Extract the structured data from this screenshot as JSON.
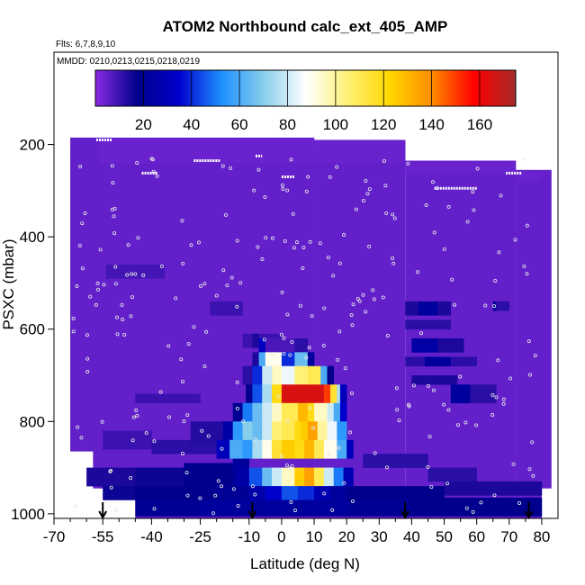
{
  "chart_data": {
    "type": "heatmap",
    "title": "ATOM2 Northbound calc_ext_405_AMP",
    "subtitle_flights": "Flts: 6,7,8,9,10",
    "subtitle_dates": "MMDD: 0210,0213,0215,0218,0219",
    "xlabel": "Latitude (deg N)",
    "ylabel": "PSXC (mbar)",
    "xlim": [
      -70,
      85
    ],
    "ylim": [
      1010,
      0
    ],
    "x_ticks": [
      -70,
      -55,
      -40,
      -25,
      -10,
      0,
      10,
      20,
      30,
      40,
      50,
      60,
      70,
      80
    ],
    "x_minor_ticks": [
      -65,
      -60,
      -50,
      -45,
      -35,
      -30,
      -20,
      -15,
      -5,
      5,
      15,
      25,
      35,
      45,
      55,
      65,
      75
    ],
    "y_ticks": [
      200,
      400,
      600,
      800,
      1000
    ],
    "colorbar": {
      "ticks": [
        20,
        40,
        60,
        80,
        100,
        120,
        140,
        160
      ],
      "range": [
        0,
        175
      ],
      "colors": [
        "#8a2be2",
        "#00008b",
        "#0000cd",
        "#1e90ff",
        "#87ceeb",
        "#ffffff",
        "#fff176",
        "#ffd700",
        "#ff8c00",
        "#ff0000",
        "#a52a2a"
      ]
    },
    "background_value": 5,
    "profile_arrows_lat": [
      -55,
      -9,
      38,
      76
    ],
    "cells": [
      {
        "lat": [
          -65,
          -56
        ],
        "p": [
          185,
          230
        ],
        "v": 5
      },
      {
        "lat": [
          -56,
          10
        ],
        "p": [
          185,
          240
        ],
        "v": 4
      },
      {
        "lat": [
          10,
          38
        ],
        "p": [
          190,
          240
        ],
        "v": 4
      },
      {
        "lat": [
          38,
          72
        ],
        "p": [
          235,
          260
        ],
        "v": 4
      },
      {
        "lat": [
          72,
          80
        ],
        "p": [
          260,
          280
        ],
        "v": 4
      },
      {
        "lat": [
          -54,
          -36
        ],
        "p": [
          460,
          490
        ],
        "v": 9
      },
      {
        "lat": [
          -22,
          -12
        ],
        "p": [
          540,
          570
        ],
        "v": 10
      },
      {
        "lat": [
          -12,
          0
        ],
        "p": [
          610,
          640
        ],
        "v": 10
      },
      {
        "lat": [
          -9,
          -7
        ],
        "p": [
          610,
          640
        ],
        "v": 14
      },
      {
        "lat": [
          38,
          42
        ],
        "p": [
          540,
          570
        ],
        "v": 14
      },
      {
        "lat": [
          42,
          48
        ],
        "p": [
          540,
          570
        ],
        "v": 22
      },
      {
        "lat": [
          48,
          52
        ],
        "p": [
          540,
          570
        ],
        "v": 14
      },
      {
        "lat": [
          65,
          67
        ],
        "p": [
          540,
          560
        ],
        "v": 22
      },
      {
        "lat": [
          66,
          70
        ],
        "p": [
          540,
          560
        ],
        "v": 12
      },
      {
        "lat": [
          38,
          52
        ],
        "p": [
          580,
          600
        ],
        "v": 12
      },
      {
        "lat": [
          40,
          48
        ],
        "p": [
          620,
          650
        ],
        "v": 24
      },
      {
        "lat": [
          48,
          56
        ],
        "p": [
          620,
          650
        ],
        "v": 14
      },
      {
        "lat": [
          38,
          44
        ],
        "p": [
          660,
          680
        ],
        "v": 12
      },
      {
        "lat": [
          44,
          52
        ],
        "p": [
          660,
          680
        ],
        "v": 22
      },
      {
        "lat": [
          52,
          60
        ],
        "p": [
          660,
          680
        ],
        "v": 12
      },
      {
        "lat": [
          40,
          54
        ],
        "p": [
          700,
          720
        ],
        "v": 14
      },
      {
        "lat": [
          52,
          58
        ],
        "p": [
          720,
          760
        ],
        "v": 22
      },
      {
        "lat": [
          58,
          66
        ],
        "p": [
          720,
          760
        ],
        "v": 12
      },
      {
        "lat": [
          -45,
          -25
        ],
        "p": [
          740,
          760
        ],
        "v": 10
      },
      {
        "lat": [
          -55,
          -40
        ],
        "p": [
          820,
          860
        ],
        "v": 10
      },
      {
        "lat": [
          -40,
          -20
        ],
        "p": [
          840,
          870
        ],
        "v": 12
      },
      {
        "lat": [
          -28,
          -15
        ],
        "p": [
          800,
          850
        ],
        "v": 13
      },
      {
        "lat": [
          -15,
          -10
        ],
        "p": [
          820,
          870
        ],
        "v": 18
      },
      {
        "lat": [
          -60,
          -45
        ],
        "p": [
          900,
          940
        ],
        "v": 14
      },
      {
        "lat": [
          -45,
          -30
        ],
        "p": [
          900,
          940
        ],
        "v": 16
      },
      {
        "lat": [
          -30,
          -15
        ],
        "p": [
          890,
          940
        ],
        "v": 18
      },
      {
        "lat": [
          -15,
          -10
        ],
        "p": [
          870,
          940
        ],
        "v": 22
      },
      {
        "lat": [
          25,
          45
        ],
        "p": [
          870,
          900
        ],
        "v": 12
      },
      {
        "lat": [
          45,
          60
        ],
        "p": [
          900,
          930
        ],
        "v": 12
      },
      {
        "lat": [
          -55,
          -45
        ],
        "p": [
          940,
          970
        ],
        "v": 16
      },
      {
        "lat": [
          -45,
          -20
        ],
        "p": [
          940,
          970
        ],
        "v": 18
      },
      {
        "lat": [
          -20,
          -10
        ],
        "p": [
          940,
          970
        ],
        "v": 20
      },
      {
        "lat": [
          20,
          50
        ],
        "p": [
          940,
          970
        ],
        "v": 18
      },
      {
        "lat": [
          50,
          80
        ],
        "p": [
          930,
          960
        ],
        "v": 14
      },
      {
        "lat": [
          -45,
          -25
        ],
        "p": [
          970,
          1005
        ],
        "v": 20
      },
      {
        "lat": [
          -25,
          -10
        ],
        "p": [
          970,
          1005
        ],
        "v": 22
      },
      {
        "lat": [
          20,
          40
        ],
        "p": [
          970,
          1005
        ],
        "v": 20
      },
      {
        "lat": [
          40,
          80
        ],
        "p": [
          965,
          1005
        ],
        "v": 18
      },
      {
        "lat": [
          -7,
          -5
        ],
        "p": [
          620,
          650
        ],
        "v": 32
      },
      {
        "lat": [
          -5,
          4
        ],
        "p": [
          620,
          650
        ],
        "v": 8
      },
      {
        "lat": [
          4,
          8
        ],
        "p": [
          620,
          650
        ],
        "v": 12
      },
      {
        "lat": [
          -9,
          -7
        ],
        "p": [
          650,
          680
        ],
        "v": 14
      },
      {
        "lat": [
          -7,
          -5
        ],
        "p": [
          650,
          680
        ],
        "v": 60
      },
      {
        "lat": [
          -5,
          0
        ],
        "p": [
          650,
          680
        ],
        "v": 90
      },
      {
        "lat": [
          0,
          4
        ],
        "p": [
          650,
          680
        ],
        "v": 40
      },
      {
        "lat": [
          4,
          8
        ],
        "p": [
          650,
          680
        ],
        "v": 65
      },
      {
        "lat": [
          8,
          10
        ],
        "p": [
          650,
          680
        ],
        "v": 22
      },
      {
        "lat": [
          -12,
          -9
        ],
        "p": [
          680,
          720
        ],
        "v": 12
      },
      {
        "lat": [
          -9,
          -6
        ],
        "p": [
          680,
          720
        ],
        "v": 40
      },
      {
        "lat": [
          -6,
          -3
        ],
        "p": [
          680,
          720
        ],
        "v": 80
      },
      {
        "lat": [
          -3,
          0
        ],
        "p": [
          680,
          720
        ],
        "v": 95
      },
      {
        "lat": [
          0,
          4
        ],
        "p": [
          680,
          720
        ],
        "v": 85
      },
      {
        "lat": [
          4,
          8
        ],
        "p": [
          680,
          720
        ],
        "v": 105
      },
      {
        "lat": [
          8,
          12
        ],
        "p": [
          680,
          720
        ],
        "v": 110
      },
      {
        "lat": [
          12,
          14
        ],
        "p": [
          680,
          720
        ],
        "v": 60
      },
      {
        "lat": [
          14,
          16
        ],
        "p": [
          680,
          720
        ],
        "v": 18
      },
      {
        "lat": [
          -11,
          -9
        ],
        "p": [
          720,
          760
        ],
        "v": 18
      },
      {
        "lat": [
          -9,
          -6
        ],
        "p": [
          720,
          760
        ],
        "v": 45
      },
      {
        "lat": [
          -6,
          -3
        ],
        "p": [
          720,
          760
        ],
        "v": 75
      },
      {
        "lat": [
          -3,
          0
        ],
        "p": [
          720,
          760
        ],
        "v": 120
      },
      {
        "lat": [
          0,
          13
        ],
        "p": [
          720,
          760
        ],
        "v": 165
      },
      {
        "lat": [
          13,
          15
        ],
        "p": [
          720,
          760
        ],
        "v": 150
      },
      {
        "lat": [
          15,
          17
        ],
        "p": [
          720,
          760
        ],
        "v": 115
      },
      {
        "lat": [
          17,
          18
        ],
        "p": [
          720,
          760
        ],
        "v": 75
      },
      {
        "lat": [
          18,
          20
        ],
        "p": [
          720,
          760
        ],
        "v": 30
      },
      {
        "lat": [
          -15,
          -12
        ],
        "p": [
          760,
          800
        ],
        "v": 20
      },
      {
        "lat": [
          -12,
          -9
        ],
        "p": [
          760,
          800
        ],
        "v": 50
      },
      {
        "lat": [
          -9,
          -6
        ],
        "p": [
          760,
          800
        ],
        "v": 65
      },
      {
        "lat": [
          -6,
          -3
        ],
        "p": [
          760,
          800
        ],
        "v": 80
      },
      {
        "lat": [
          -3,
          0
        ],
        "p": [
          760,
          800
        ],
        "v": 95
      },
      {
        "lat": [
          0,
          5
        ],
        "p": [
          760,
          800
        ],
        "v": 110
      },
      {
        "lat": [
          5,
          8
        ],
        "p": [
          760,
          800
        ],
        "v": 130
      },
      {
        "lat": [
          8,
          10
        ],
        "p": [
          760,
          800
        ],
        "v": 120
      },
      {
        "lat": [
          10,
          14
        ],
        "p": [
          760,
          800
        ],
        "v": 95
      },
      {
        "lat": [
          14,
          16
        ],
        "p": [
          760,
          800
        ],
        "v": 80
      },
      {
        "lat": [
          16,
          18
        ],
        "p": [
          760,
          800
        ],
        "v": 60
      },
      {
        "lat": [
          18,
          20
        ],
        "p": [
          760,
          800
        ],
        "v": 35
      },
      {
        "lat": [
          -18,
          -15
        ],
        "p": [
          800,
          840
        ],
        "v": 25
      },
      {
        "lat": [
          -15,
          -12
        ],
        "p": [
          800,
          840
        ],
        "v": 55
      },
      {
        "lat": [
          -12,
          -9
        ],
        "p": [
          800,
          840
        ],
        "v": 70
      },
      {
        "lat": [
          -9,
          -6
        ],
        "p": [
          800,
          840
        ],
        "v": 65
      },
      {
        "lat": [
          -6,
          -3
        ],
        "p": [
          800,
          840
        ],
        "v": 80
      },
      {
        "lat": [
          -3,
          0
        ],
        "p": [
          800,
          840
        ],
        "v": 105
      },
      {
        "lat": [
          0,
          4
        ],
        "p": [
          800,
          840
        ],
        "v": 110
      },
      {
        "lat": [
          4,
          6
        ],
        "p": [
          800,
          840
        ],
        "v": 120
      },
      {
        "lat": [
          6,
          8
        ],
        "p": [
          800,
          840
        ],
        "v": 125
      },
      {
        "lat": [
          8,
          11
        ],
        "p": [
          800,
          840
        ],
        "v": 135
      },
      {
        "lat": [
          11,
          14
        ],
        "p": [
          800,
          840
        ],
        "v": 100
      },
      {
        "lat": [
          14,
          17
        ],
        "p": [
          800,
          840
        ],
        "v": 85
      },
      {
        "lat": [
          17,
          20
        ],
        "p": [
          800,
          840
        ],
        "v": 55
      },
      {
        "lat": [
          -20,
          -16
        ],
        "p": [
          840,
          880
        ],
        "v": 30
      },
      {
        "lat": [
          -16,
          -12
        ],
        "p": [
          840,
          880
        ],
        "v": 60
      },
      {
        "lat": [
          -12,
          -9
        ],
        "p": [
          840,
          880
        ],
        "v": 55
      },
      {
        "lat": [
          -9,
          -6
        ],
        "p": [
          840,
          880
        ],
        "v": 75
      },
      {
        "lat": [
          -6,
          -3
        ],
        "p": [
          840,
          880
        ],
        "v": 90
      },
      {
        "lat": [
          -3,
          0
        ],
        "p": [
          840,
          880
        ],
        "v": 115
      },
      {
        "lat": [
          0,
          4
        ],
        "p": [
          840,
          880
        ],
        "v": 125
      },
      {
        "lat": [
          4,
          7
        ],
        "p": [
          840,
          880
        ],
        "v": 120
      },
      {
        "lat": [
          7,
          10
        ],
        "p": [
          840,
          880
        ],
        "v": 130
      },
      {
        "lat": [
          10,
          13
        ],
        "p": [
          840,
          880
        ],
        "v": 110
      },
      {
        "lat": [
          13,
          17
        ],
        "p": [
          840,
          880
        ],
        "v": 90
      },
      {
        "lat": [
          17,
          20
        ],
        "p": [
          840,
          880
        ],
        "v": 60
      },
      {
        "lat": [
          20,
          22
        ],
        "p": [
          840,
          880
        ],
        "v": 30
      },
      {
        "lat": [
          -14,
          -10
        ],
        "p": [
          900,
          940
        ],
        "v": 25
      },
      {
        "lat": [
          -10,
          -6
        ],
        "p": [
          900,
          940
        ],
        "v": 45
      },
      {
        "lat": [
          -6,
          -3
        ],
        "p": [
          900,
          940
        ],
        "v": 65
      },
      {
        "lat": [
          -3,
          0
        ],
        "p": [
          900,
          940
        ],
        "v": 80
      },
      {
        "lat": [
          0,
          4
        ],
        "p": [
          900,
          940
        ],
        "v": 95
      },
      {
        "lat": [
          4,
          7
        ],
        "p": [
          900,
          940
        ],
        "v": 125
      },
      {
        "lat": [
          7,
          10
        ],
        "p": [
          900,
          940
        ],
        "v": 135
      },
      {
        "lat": [
          10,
          13
        ],
        "p": [
          900,
          940
        ],
        "v": 110
      },
      {
        "lat": [
          13,
          16
        ],
        "p": [
          900,
          940
        ],
        "v": 80
      },
      {
        "lat": [
          16,
          19
        ],
        "p": [
          900,
          940
        ],
        "v": 50
      },
      {
        "lat": [
          19,
          22
        ],
        "p": [
          900,
          940
        ],
        "v": 28
      },
      {
        "lat": [
          -10,
          -5
        ],
        "p": [
          940,
          970
        ],
        "v": 26
      },
      {
        "lat": [
          -5,
          0
        ],
        "p": [
          940,
          970
        ],
        "v": 35
      },
      {
        "lat": [
          0,
          5
        ],
        "p": [
          940,
          970
        ],
        "v": 45
      },
      {
        "lat": [
          5,
          10
        ],
        "p": [
          940,
          970
        ],
        "v": 40
      },
      {
        "lat": [
          10,
          15
        ],
        "p": [
          940,
          970
        ],
        "v": 28
      },
      {
        "lat": [
          15,
          20
        ],
        "p": [
          940,
          970
        ],
        "v": 22
      },
      {
        "lat": [
          -10,
          20
        ],
        "p": [
          970,
          1005
        ],
        "v": 22
      }
    ]
  }
}
